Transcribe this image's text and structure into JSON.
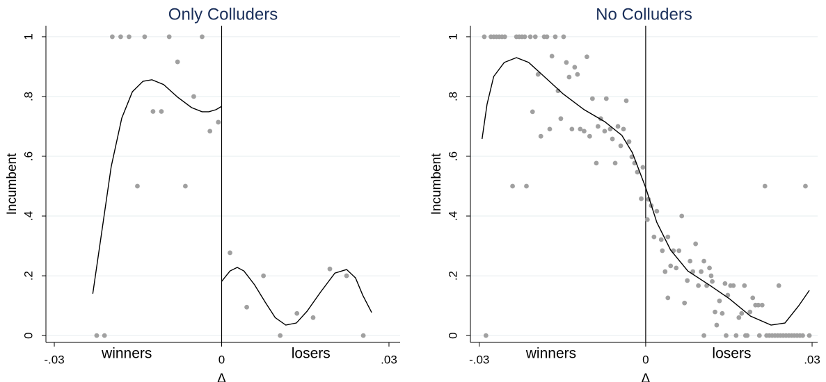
{
  "chart_data": [
    {
      "type": "scatter",
      "title": "Only Colluders",
      "xlabel": "Δ",
      "ylabel": "Incumbent",
      "annotations": [
        "winners",
        "losers"
      ],
      "xlim": [
        -0.0315,
        0.032
      ],
      "ylim": [
        -0.023,
        1.037
      ],
      "xticks": [
        {
          "value": -0.03,
          "label": "-.03"
        },
        0,
        {
          "value": 0.03,
          "label": ".03"
        }
      ],
      "yticks": [
        0,
        {
          "value": 0.2,
          "label": ".2"
        },
        {
          "value": 0.4,
          "label": ".4"
        },
        {
          "value": 0.6,
          "label": ".6"
        },
        {
          "value": 0.8,
          "label": ".8"
        },
        1
      ],
      "grid": true,
      "xline": 0,
      "scatter": {
        "color": "#a0a0a0",
        "x": [
          -0.0196,
          -0.0181,
          -0.0166,
          -0.0138,
          -0.0094,
          -0.0035,
          -0.0079,
          -0.0123,
          -0.0108,
          -0.005,
          -0.0151,
          -0.0065,
          -0.0021,
          -0.0006,
          -0.0224,
          -0.021,
          0.0015,
          0.0045,
          0.0075,
          0.0105,
          0.0135,
          0.0164,
          0.0194,
          0.0224,
          0.0254
        ],
        "values": [
          1,
          1,
          1,
          1,
          1,
          1,
          0.916,
          0.75,
          0.75,
          0.8,
          0.5,
          0.5,
          0.684,
          0.714,
          0,
          0,
          0.277,
          0.095,
          0.2,
          0,
          0.074,
          0.06,
          0.223,
          0.2,
          0
        ]
      },
      "fit": {
        "color": "#000000",
        "x": [
          -0.0231,
          -0.0216,
          -0.0198,
          -0.0179,
          -0.016,
          -0.0141,
          -0.0125,
          -0.0104,
          -0.0079,
          -0.0054,
          -0.0035,
          -0.0023,
          -0.001,
          0,
          null,
          0,
          0.0015,
          0.0028,
          0.004,
          0.0059,
          0.0078,
          0.0096,
          0.0115,
          0.0134,
          0.0153,
          0.0178,
          0.0203,
          0.0224,
          0.024,
          0.0253,
          0.0269
        ],
        "values": [
          0.14,
          0.333,
          0.565,
          0.728,
          0.816,
          0.851,
          0.856,
          0.84,
          0.798,
          0.763,
          0.749,
          0.749,
          0.756,
          0.767,
          null,
          0.181,
          0.216,
          0.228,
          0.216,
          0.17,
          0.112,
          0.06,
          0.035,
          0.042,
          0.081,
          0.147,
          0.209,
          0.221,
          0.193,
          0.135,
          0.077
        ]
      }
    },
    {
      "type": "scatter",
      "title": "No Colluders",
      "xlabel": "Δ",
      "ylabel": "Incumbent",
      "annotations": [
        "winners",
        "losers"
      ],
      "xlim": [
        -0.0316,
        0.031
      ],
      "ylim": [
        -0.023,
        1.037
      ],
      "xticks": [
        {
          "value": -0.03,
          "label": "-.03"
        },
        0,
        {
          "value": 0.03,
          "label": ".03"
        }
      ],
      "yticks": [
        0,
        {
          "value": 0.2,
          "label": ".2"
        },
        {
          "value": 0.4,
          "label": ".4"
        },
        {
          "value": 0.6,
          "label": ".6"
        },
        {
          "value": 0.8,
          "label": ".8"
        },
        1
      ],
      "grid": true,
      "xline": 0,
      "scatter": {
        "color": "#a0a0a0",
        "x": [
          -0.0291,
          -0.0279,
          -0.0274,
          -0.0269,
          -0.0264,
          -0.0259,
          -0.0254,
          -0.0233,
          -0.0228,
          -0.0223,
          -0.0218,
          -0.0208,
          -0.0199,
          -0.0183,
          -0.0178,
          -0.0163,
          -0.0148,
          -0.0169,
          -0.0106,
          -0.0194,
          -0.0143,
          -0.0128,
          -0.0123,
          -0.0138,
          -0.0158,
          -0.0204,
          -0.0189,
          -0.0173,
          -0.0153,
          -0.0133,
          -0.0118,
          -0.0111,
          -0.0101,
          -0.0096,
          -0.0071,
          -0.0081,
          -0.0086,
          -0.0074,
          -0.0064,
          -0.005,
          -0.004,
          -0.0035,
          -0.006,
          -0.0045,
          -0.003,
          -0.0089,
          -0.0055,
          -0.0025,
          -0.002,
          -0.0015,
          -0.0005,
          -0.024,
          -0.0215,
          -0.0288,
          -0.0008,
          0.0005,
          0.001,
          0.002,
          0.0003,
          0.0015,
          0.0028,
          0.004,
          0.003,
          0.0035,
          0.004,
          0.0045,
          0.005,
          0.0055,
          0.006,
          0.0065,
          0.007,
          0.0075,
          0.008,
          0.0085,
          0.009,
          0.0095,
          0.01,
          0.0105,
          0.011,
          0.0115,
          0.0105,
          0.0118,
          0.012,
          0.0125,
          0.0128,
          0.0133,
          0.0138,
          0.0143,
          0.0148,
          0.0145,
          0.0153,
          0.0158,
          0.0163,
          0.0168,
          0.0173,
          0.0178,
          0.018,
          0.0183,
          0.0188,
          0.0193,
          0.0198,
          0.0203,
          0.021,
          0.0215,
          0.024,
          0.0288,
          0.0205,
          0.0218,
          0.0223,
          0.0228,
          0.0233,
          0.0238,
          0.0243,
          0.0248,
          0.0253,
          0.0258,
          0.0263,
          0.0268,
          0.0273,
          0.0278,
          0.0283,
          0.0295
        ],
        "values": [
          1,
          1,
          1,
          1,
          1,
          1,
          1,
          1,
          1,
          1,
          1,
          1,
          1,
          1,
          1,
          1,
          1,
          0.935,
          0.933,
          0.874,
          0.914,
          0.898,
          0.874,
          0.865,
          0.819,
          0.749,
          0.667,
          0.691,
          0.726,
          0.691,
          0.691,
          0.684,
          0.667,
          0.793,
          0.793,
          0.726,
          0.7,
          0.684,
          0.691,
          0.7,
          0.691,
          0.786,
          0.658,
          0.635,
          0.649,
          0.577,
          0.577,
          0.598,
          0.577,
          0.547,
          0.563,
          0.5,
          0.5,
          0,
          0.458,
          0.456,
          0.435,
          0.416,
          0.388,
          0.33,
          0.321,
          0.33,
          0.284,
          0.214,
          0.126,
          0.233,
          0.284,
          0.226,
          0.284,
          0.4,
          0.109,
          0.184,
          0.249,
          0.214,
          0.307,
          0.167,
          0.214,
          0.249,
          0.167,
          0.226,
          0,
          0.2,
          0.181,
          0.079,
          0.035,
          0.116,
          0.074,
          0.174,
          0.135,
          0,
          0.167,
          0.167,
          0,
          0.06,
          0.074,
          0.167,
          0,
          0,
          0.079,
          0.126,
          0.102,
          0.102,
          0.102,
          0.5,
          0.167,
          0.5,
          0,
          0,
          0,
          0,
          0,
          0,
          0,
          0,
          0,
          0,
          0,
          0,
          0,
          0,
          0,
          0
        ]
      },
      "fit": {
        "color": "#000000",
        "x": [
          -0.0295,
          -0.0286,
          -0.0274,
          -0.0255,
          -0.0233,
          -0.0211,
          -0.0186,
          -0.0149,
          -0.0111,
          -0.0074,
          -0.0043,
          -0.0024,
          0,
          0.002,
          0.0045,
          0.0076,
          0.0114,
          0.0151,
          0.0189,
          0.0226,
          0.0251,
          0.0276,
          0.0295
        ],
        "values": [
          0.658,
          0.774,
          0.867,
          0.914,
          0.93,
          0.914,
          0.872,
          0.809,
          0.756,
          0.716,
          0.67,
          0.612,
          0.495,
          0.379,
          0.286,
          0.216,
          0.17,
          0.123,
          0.065,
          0.035,
          0.042,
          0.1,
          0.151
        ]
      }
    }
  ]
}
